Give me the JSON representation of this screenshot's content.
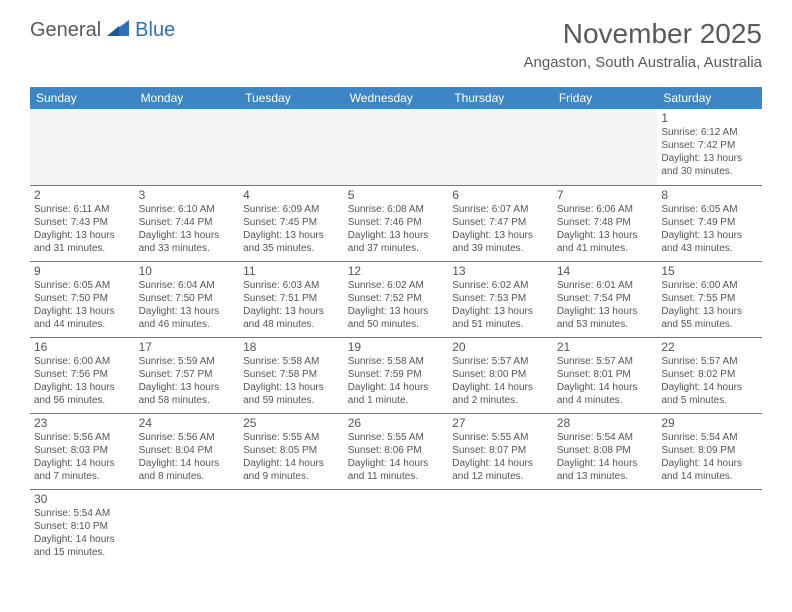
{
  "logo": {
    "general": "General",
    "blue": "Blue"
  },
  "title": "November 2025",
  "location": "Angaston, South Australia, Australia",
  "header_bg": "#3d86c6",
  "header_text": "#ffffff",
  "border_color": "#3d86c6",
  "days": [
    "Sunday",
    "Monday",
    "Tuesday",
    "Wednesday",
    "Thursday",
    "Friday",
    "Saturday"
  ],
  "weeks": [
    [
      null,
      null,
      null,
      null,
      null,
      null,
      {
        "n": "1",
        "sr": "6:12 AM",
        "ss": "7:42 PM",
        "dl": "13 hours and 30 minutes."
      }
    ],
    [
      {
        "n": "2",
        "sr": "6:11 AM",
        "ss": "7:43 PM",
        "dl": "13 hours and 31 minutes."
      },
      {
        "n": "3",
        "sr": "6:10 AM",
        "ss": "7:44 PM",
        "dl": "13 hours and 33 minutes."
      },
      {
        "n": "4",
        "sr": "6:09 AM",
        "ss": "7:45 PM",
        "dl": "13 hours and 35 minutes."
      },
      {
        "n": "5",
        "sr": "6:08 AM",
        "ss": "7:46 PM",
        "dl": "13 hours and 37 minutes."
      },
      {
        "n": "6",
        "sr": "6:07 AM",
        "ss": "7:47 PM",
        "dl": "13 hours and 39 minutes."
      },
      {
        "n": "7",
        "sr": "6:06 AM",
        "ss": "7:48 PM",
        "dl": "13 hours and 41 minutes."
      },
      {
        "n": "8",
        "sr": "6:05 AM",
        "ss": "7:49 PM",
        "dl": "13 hours and 43 minutes."
      }
    ],
    [
      {
        "n": "9",
        "sr": "6:05 AM",
        "ss": "7:50 PM",
        "dl": "13 hours and 44 minutes."
      },
      {
        "n": "10",
        "sr": "6:04 AM",
        "ss": "7:50 PM",
        "dl": "13 hours and 46 minutes."
      },
      {
        "n": "11",
        "sr": "6:03 AM",
        "ss": "7:51 PM",
        "dl": "13 hours and 48 minutes."
      },
      {
        "n": "12",
        "sr": "6:02 AM",
        "ss": "7:52 PM",
        "dl": "13 hours and 50 minutes."
      },
      {
        "n": "13",
        "sr": "6:02 AM",
        "ss": "7:53 PM",
        "dl": "13 hours and 51 minutes."
      },
      {
        "n": "14",
        "sr": "6:01 AM",
        "ss": "7:54 PM",
        "dl": "13 hours and 53 minutes."
      },
      {
        "n": "15",
        "sr": "6:00 AM",
        "ss": "7:55 PM",
        "dl": "13 hours and 55 minutes."
      }
    ],
    [
      {
        "n": "16",
        "sr": "6:00 AM",
        "ss": "7:56 PM",
        "dl": "13 hours and 56 minutes."
      },
      {
        "n": "17",
        "sr": "5:59 AM",
        "ss": "7:57 PM",
        "dl": "13 hours and 58 minutes."
      },
      {
        "n": "18",
        "sr": "5:58 AM",
        "ss": "7:58 PM",
        "dl": "13 hours and 59 minutes."
      },
      {
        "n": "19",
        "sr": "5:58 AM",
        "ss": "7:59 PM",
        "dl": "14 hours and 1 minute."
      },
      {
        "n": "20",
        "sr": "5:57 AM",
        "ss": "8:00 PM",
        "dl": "14 hours and 2 minutes."
      },
      {
        "n": "21",
        "sr": "5:57 AM",
        "ss": "8:01 PM",
        "dl": "14 hours and 4 minutes."
      },
      {
        "n": "22",
        "sr": "5:57 AM",
        "ss": "8:02 PM",
        "dl": "14 hours and 5 minutes."
      }
    ],
    [
      {
        "n": "23",
        "sr": "5:56 AM",
        "ss": "8:03 PM",
        "dl": "14 hours and 7 minutes."
      },
      {
        "n": "24",
        "sr": "5:56 AM",
        "ss": "8:04 PM",
        "dl": "14 hours and 8 minutes."
      },
      {
        "n": "25",
        "sr": "5:55 AM",
        "ss": "8:05 PM",
        "dl": "14 hours and 9 minutes."
      },
      {
        "n": "26",
        "sr": "5:55 AM",
        "ss": "8:06 PM",
        "dl": "14 hours and 11 minutes."
      },
      {
        "n": "27",
        "sr": "5:55 AM",
        "ss": "8:07 PM",
        "dl": "14 hours and 12 minutes."
      },
      {
        "n": "28",
        "sr": "5:54 AM",
        "ss": "8:08 PM",
        "dl": "14 hours and 13 minutes."
      },
      {
        "n": "29",
        "sr": "5:54 AM",
        "ss": "8:09 PM",
        "dl": "14 hours and 14 minutes."
      }
    ],
    [
      {
        "n": "30",
        "sr": "5:54 AM",
        "ss": "8:10 PM",
        "dl": "14 hours and 15 minutes."
      },
      null,
      null,
      null,
      null,
      null,
      null
    ]
  ],
  "labels": {
    "sunrise": "Sunrise: ",
    "sunset": "Sunset: ",
    "daylight": "Daylight: "
  }
}
